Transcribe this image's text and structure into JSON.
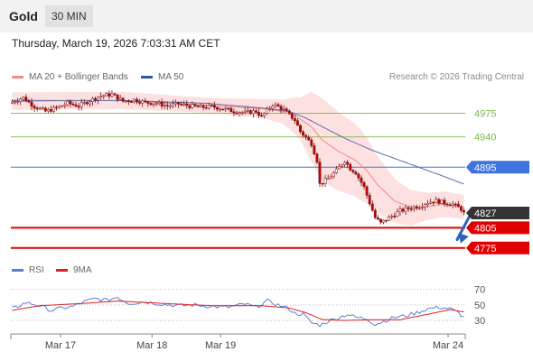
{
  "header": {
    "symbol": "Gold",
    "interval": "30 MIN",
    "datetime": "Thursday, March 19, 2026 7:03:31 AM CET",
    "credit": "Research © 2026 Trading Central"
  },
  "legend_main": [
    {
      "label": "MA 20 + Bollinger Bands",
      "color": "#ef8a8a"
    },
    {
      "label": "MA 50",
      "color": "#2c5aa0"
    }
  ],
  "legend_rsi": [
    {
      "label": "RSI",
      "color": "#5b7fd6"
    },
    {
      "label": "9MA",
      "color": "#e02020"
    }
  ],
  "colors": {
    "up_candle": "#ffffff",
    "down_candle": "#c00000",
    "candle_outline": "#7a1010",
    "bollinger_fill": "#fde0e0",
    "ma20": "#ef8a8a",
    "ma50": "#5a6fb0",
    "green_level": "#7db84a",
    "blue_level": "#3f74e0",
    "red_level": "#e00000",
    "last_price_bg": "#333333",
    "arrow": "#2f63b8"
  },
  "chart_data": [
    {
      "type": "candlestick",
      "title": "Gold",
      "x_ticks": [
        "Mar 17",
        "Mar 18",
        "Mar 19",
        "Mar 24"
      ],
      "ylim": [
        4760,
        5020
      ],
      "last_price": 4827,
      "levels": [
        {
          "value": 4975,
          "label": "4975",
          "kind": "green"
        },
        {
          "value": 4940,
          "label": "4940",
          "kind": "green"
        },
        {
          "value": 4895,
          "label": "4895",
          "kind": "blue"
        },
        {
          "value": 4805,
          "label": "4805",
          "kind": "red"
        },
        {
          "value": 4775,
          "label": "4775",
          "kind": "red"
        }
      ],
      "forecast_arrow": {
        "from": 4827,
        "to": 4778
      },
      "anchors": {
        "close": [
          [
            0,
            4992
          ],
          [
            4,
            4998
          ],
          [
            8,
            4985
          ],
          [
            12,
            4978
          ],
          [
            16,
            4983
          ],
          [
            20,
            4990
          ],
          [
            24,
            4986
          ],
          [
            28,
            4994
          ],
          [
            32,
            5001
          ],
          [
            36,
            5003
          ],
          [
            40,
            4993
          ],
          [
            44,
            4995
          ],
          [
            48,
            4991
          ],
          [
            52,
            4990
          ],
          [
            56,
            4986
          ],
          [
            60,
            4989
          ],
          [
            64,
            4986
          ],
          [
            68,
            4984
          ],
          [
            72,
            4985
          ],
          [
            76,
            4982
          ],
          [
            80,
            4978
          ],
          [
            84,
            4976
          ],
          [
            88,
            4978
          ],
          [
            90,
            4970
          ],
          [
            94,
            4988
          ],
          [
            96,
            4985
          ],
          [
            98,
            4980
          ],
          [
            102,
            4965
          ],
          [
            104,
            4948
          ],
          [
            108,
            4930
          ],
          [
            110,
            4905
          ],
          [
            111,
            4870
          ],
          [
            114,
            4878
          ],
          [
            117,
            4890
          ],
          [
            120,
            4905
          ],
          [
            122,
            4893
          ],
          [
            124,
            4887
          ],
          [
            127,
            4865
          ],
          [
            129,
            4842
          ],
          [
            131,
            4820
          ],
          [
            133,
            4812
          ],
          [
            136,
            4820
          ],
          [
            140,
            4830
          ],
          [
            144,
            4835
          ],
          [
            147,
            4837
          ],
          [
            150,
            4843
          ],
          [
            153,
            4845
          ],
          [
            156,
            4842
          ],
          [
            159,
            4840
          ],
          [
            162,
            4833
          ],
          [
            163,
            4827
          ]
        ],
        "ma20": [
          [
            0,
            4993
          ],
          [
            40,
            4994
          ],
          [
            70,
            4987
          ],
          [
            90,
            4982
          ],
          [
            96,
            4979
          ],
          [
            102,
            4972
          ],
          [
            108,
            4955
          ],
          [
            112,
            4935
          ],
          [
            118,
            4918
          ],
          [
            124,
            4905
          ],
          [
            128,
            4890
          ],
          [
            132,
            4868
          ],
          [
            138,
            4845
          ],
          [
            144,
            4835
          ],
          [
            150,
            4837
          ],
          [
            156,
            4840
          ],
          [
            163,
            4836
          ]
        ],
        "bb_width": [
          [
            0,
            13
          ],
          [
            40,
            13
          ],
          [
            70,
            11
          ],
          [
            90,
            14
          ],
          [
            98,
            18
          ],
          [
            104,
            32
          ],
          [
            108,
            52
          ],
          [
            112,
            62
          ],
          [
            118,
            58
          ],
          [
            126,
            52
          ],
          [
            132,
            42
          ],
          [
            140,
            30
          ],
          [
            150,
            20
          ],
          [
            163,
            18
          ]
        ],
        "ma50": [
          [
            0,
            4994
          ],
          [
            40,
            4994
          ],
          [
            70,
            4990
          ],
          [
            90,
            4983
          ],
          [
            100,
            4978
          ],
          [
            106,
            4968
          ],
          [
            112,
            4955
          ],
          [
            120,
            4938
          ],
          [
            130,
            4920
          ],
          [
            140,
            4905
          ],
          [
            150,
            4890
          ],
          [
            156,
            4881
          ],
          [
            163,
            4870
          ]
        ]
      }
    },
    {
      "type": "line",
      "title": "RSI",
      "ylim": [
        15,
        80
      ],
      "y_ticks": [
        70,
        50,
        30
      ],
      "series": [
        {
          "name": "RSI",
          "values": [
            [
              0,
              45
            ],
            [
              5,
              53
            ],
            [
              10,
              49
            ],
            [
              14,
              43
            ],
            [
              18,
              46
            ],
            [
              22,
              48
            ],
            [
              26,
              54
            ],
            [
              30,
              58
            ],
            [
              34,
              56
            ],
            [
              38,
              60
            ],
            [
              42,
              52
            ],
            [
              48,
              54
            ],
            [
              54,
              51
            ],
            [
              60,
              49
            ],
            [
              66,
              50
            ],
            [
              72,
              48
            ],
            [
              78,
              47
            ],
            [
              84,
              51
            ],
            [
              88,
              47
            ],
            [
              92,
              55
            ],
            [
              96,
              50
            ],
            [
              100,
              45
            ],
            [
              102,
              39
            ],
            [
              105,
              38
            ],
            [
              108,
              27
            ],
            [
              111,
              24
            ],
            [
              114,
              29
            ],
            [
              118,
              34
            ],
            [
              121,
              38
            ],
            [
              124,
              34
            ],
            [
              128,
              32
            ],
            [
              131,
              25
            ],
            [
              134,
              29
            ],
            [
              138,
              34
            ],
            [
              142,
              36
            ],
            [
              146,
              40
            ],
            [
              150,
              45
            ],
            [
              154,
              47
            ],
            [
              158,
              45
            ],
            [
              161,
              40
            ],
            [
              163,
              34
            ]
          ]
        },
        {
          "name": "9MA",
          "values": [
            [
              0,
              43
            ],
            [
              10,
              49
            ],
            [
              26,
              52
            ],
            [
              38,
              55
            ],
            [
              54,
              52
            ],
            [
              72,
              49
            ],
            [
              90,
              49
            ],
            [
              100,
              46
            ],
            [
              106,
              40
            ],
            [
              112,
              31
            ],
            [
              120,
              30
            ],
            [
              130,
              31
            ],
            [
              140,
              31
            ],
            [
              150,
              38
            ],
            [
              158,
              44
            ],
            [
              163,
              41
            ]
          ]
        }
      ]
    }
  ]
}
